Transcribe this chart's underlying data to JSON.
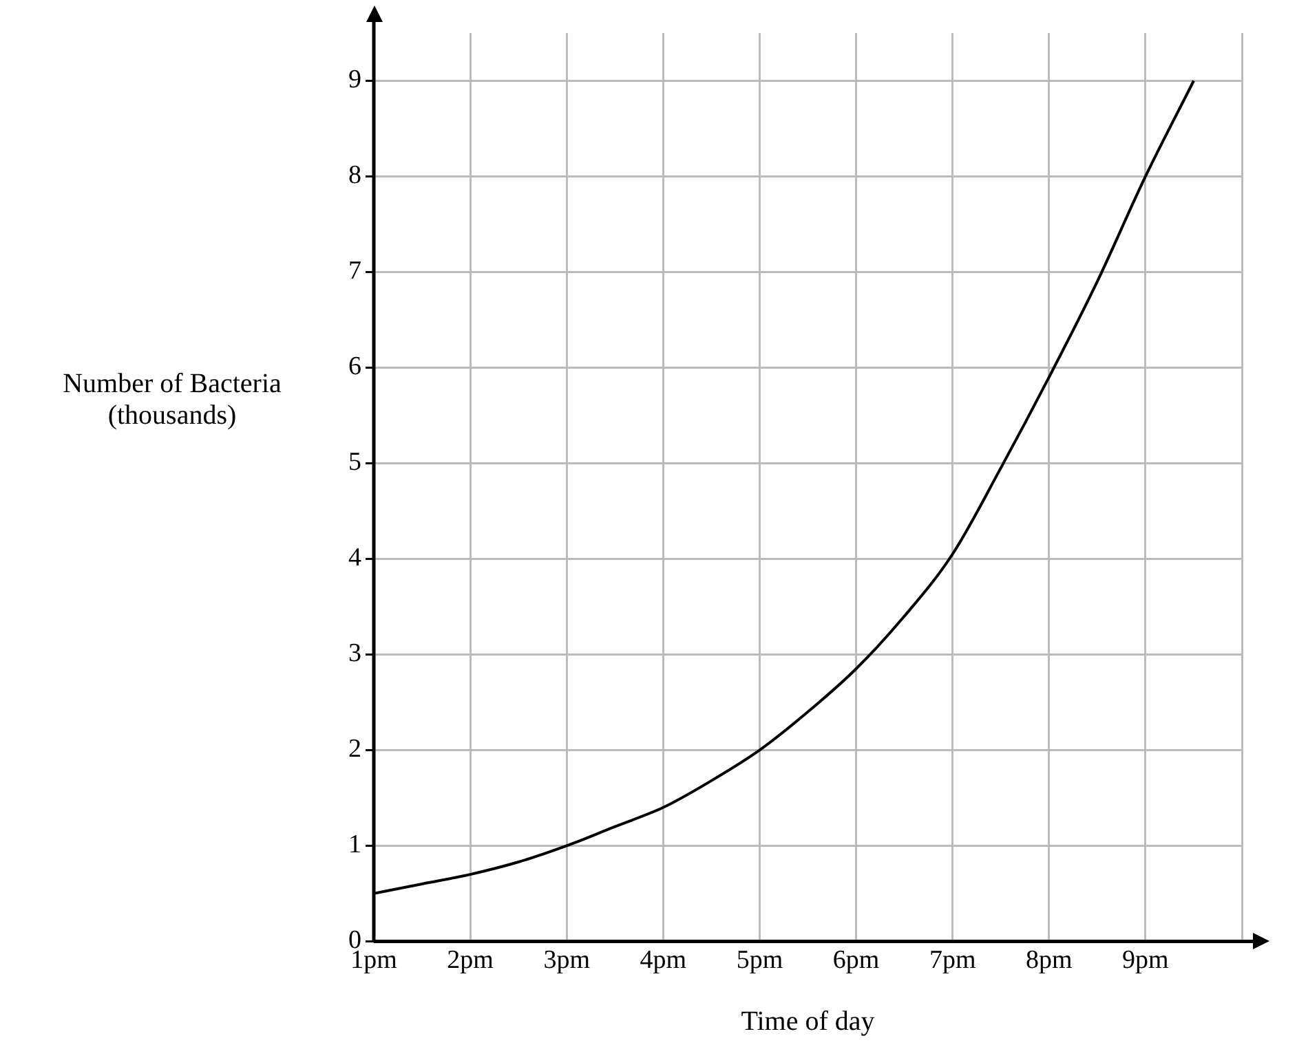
{
  "chart_data": {
    "type": "line",
    "xlabel": "Time of day",
    "ylabel": "Number of Bacteria\n(thousands)",
    "categories": [
      "1pm",
      null,
      "2pm",
      null,
      "3pm",
      null,
      "4pm",
      null,
      "5pm",
      null,
      "6pm",
      null,
      "7pm",
      null,
      "8pm",
      null,
      "9pm",
      null,
      null
    ],
    "series": [
      {
        "color": "#000000",
        "values": [
          0.5,
          0.6,
          0.7,
          0.83,
          1.0,
          1.2,
          1.4,
          1.68,
          2.0,
          2.4,
          2.85,
          3.4,
          4.05,
          4.95,
          5.9,
          6.9,
          8.0,
          9.0,
          null
        ]
      }
    ],
    "ylim": [
      0,
      9.5
    ],
    "yticks": [
      0,
      1,
      2,
      3,
      4,
      5,
      6,
      7,
      8,
      9
    ],
    "grid": true,
    "legend": false,
    "marker": "none",
    "line_style": "solid"
  }
}
